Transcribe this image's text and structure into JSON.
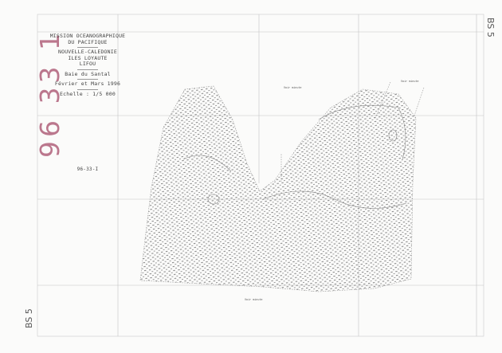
{
  "stamp": {
    "number": "96 33 1",
    "color": "#b0607a"
  },
  "sheet_code": {
    "top_right": "BS 5",
    "bottom_left": "BS 5"
  },
  "title_block": {
    "mission": "MISSION OCEANOGRAPHIQUE",
    "mission2": "DU PACIFIQUE",
    "region": "NOUVELLE-CALEDONIE",
    "islands": "ILES LOYAUTE",
    "island": "LIFOU",
    "bay": "Baie du Santal",
    "date": "Février et Mars 1996",
    "scale": "Echelle : 1/5 000",
    "reference": "96-33-I"
  },
  "annotations": [
    {
      "label": "Voir minute"
    },
    {
      "label": "Voir minute"
    },
    {
      "label": "Voir minute"
    }
  ]
}
